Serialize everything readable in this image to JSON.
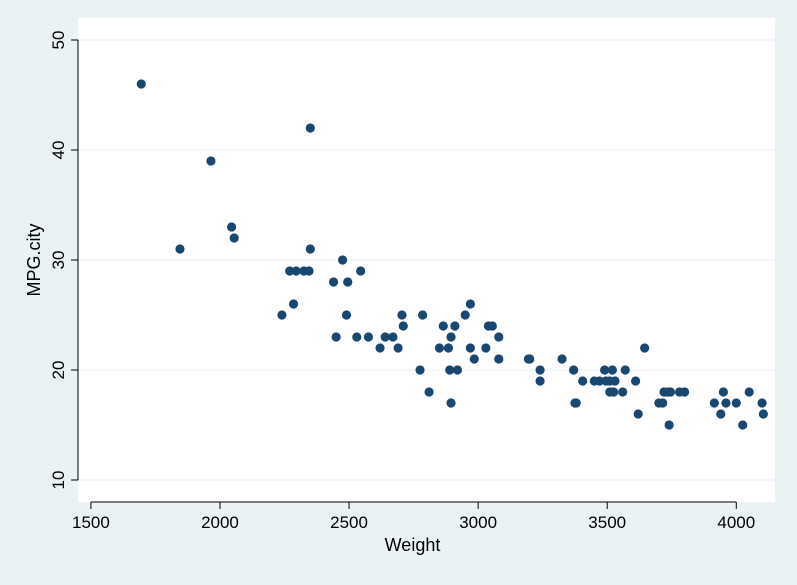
{
  "chart_data": {
    "type": "scatter",
    "title": "",
    "xlabel": "Weight",
    "ylabel": "MPG.city",
    "xlim": [
      1450,
      4150
    ],
    "ylim": [
      8,
      52
    ],
    "xticks": [
      1500,
      2000,
      2500,
      3000,
      3500,
      4000
    ],
    "xtick_labels": [
      "1500",
      "2000",
      "2500",
      "3000",
      "3500",
      "4000"
    ],
    "yticks": [
      10,
      20,
      30,
      40,
      50
    ],
    "ytick_labels": [
      "10",
      "20",
      "30",
      "40",
      "50"
    ],
    "grid": "horizontal",
    "legend": "none",
    "marker_color": "#1a476f",
    "plot_background": "#ffffff",
    "outer_background": "#eaf2f3",
    "gridline_color": "#eaf2f3",
    "points": [
      [
        1695,
        46
      ],
      [
        1845,
        31
      ],
      [
        1965,
        39
      ],
      [
        2045,
        33
      ],
      [
        2055,
        32
      ],
      [
        2240,
        25
      ],
      [
        2270,
        29
      ],
      [
        2285,
        26
      ],
      [
        2295,
        29
      ],
      [
        2325,
        29
      ],
      [
        2345,
        29
      ],
      [
        2350,
        42
      ],
      [
        2350,
        31
      ],
      [
        2440,
        28
      ],
      [
        2450,
        23
      ],
      [
        2475,
        30
      ],
      [
        2490,
        25
      ],
      [
        2495,
        28
      ],
      [
        2530,
        23
      ],
      [
        2545,
        29
      ],
      [
        2575,
        23
      ],
      [
        2620,
        22
      ],
      [
        2640,
        23
      ],
      [
        2670,
        23
      ],
      [
        2690,
        22
      ],
      [
        2705,
        25
      ],
      [
        2710,
        24
      ],
      [
        2775,
        20
      ],
      [
        2785,
        25
      ],
      [
        2810,
        18
      ],
      [
        2850,
        22
      ],
      [
        2865,
        24
      ],
      [
        2885,
        22
      ],
      [
        2890,
        20
      ],
      [
        2895,
        23
      ],
      [
        2895,
        17
      ],
      [
        2910,
        24
      ],
      [
        2920,
        20
      ],
      [
        2950,
        25
      ],
      [
        2970,
        26
      ],
      [
        2970,
        22
      ],
      [
        2985,
        21
      ],
      [
        3030,
        22
      ],
      [
        3040,
        24
      ],
      [
        3055,
        24
      ],
      [
        3080,
        23
      ],
      [
        3080,
        21
      ],
      [
        3195,
        21
      ],
      [
        3200,
        21
      ],
      [
        3240,
        20
      ],
      [
        3240,
        19
      ],
      [
        3325,
        21
      ],
      [
        3370,
        20
      ],
      [
        3375,
        17
      ],
      [
        3380,
        17
      ],
      [
        3405,
        19
      ],
      [
        3450,
        19
      ],
      [
        3470,
        19
      ],
      [
        3490,
        20
      ],
      [
        3495,
        19
      ],
      [
        3510,
        19
      ],
      [
        3510,
        18
      ],
      [
        3520,
        20
      ],
      [
        3525,
        18
      ],
      [
        3530,
        19
      ],
      [
        3560,
        18
      ],
      [
        3570,
        20
      ],
      [
        3610,
        19
      ],
      [
        3620,
        16
      ],
      [
        3645,
        22
      ],
      [
        3700,
        17
      ],
      [
        3715,
        17
      ],
      [
        3720,
        18
      ],
      [
        3735,
        18
      ],
      [
        3740,
        15
      ],
      [
        3745,
        18
      ],
      [
        3780,
        18
      ],
      [
        3800,
        18
      ],
      [
        3915,
        17
      ],
      [
        3940,
        16
      ],
      [
        3950,
        18
      ],
      [
        3960,
        17
      ],
      [
        4000,
        17
      ],
      [
        4025,
        15
      ],
      [
        4050,
        18
      ],
      [
        4100,
        17
      ],
      [
        4105,
        16
      ]
    ]
  }
}
